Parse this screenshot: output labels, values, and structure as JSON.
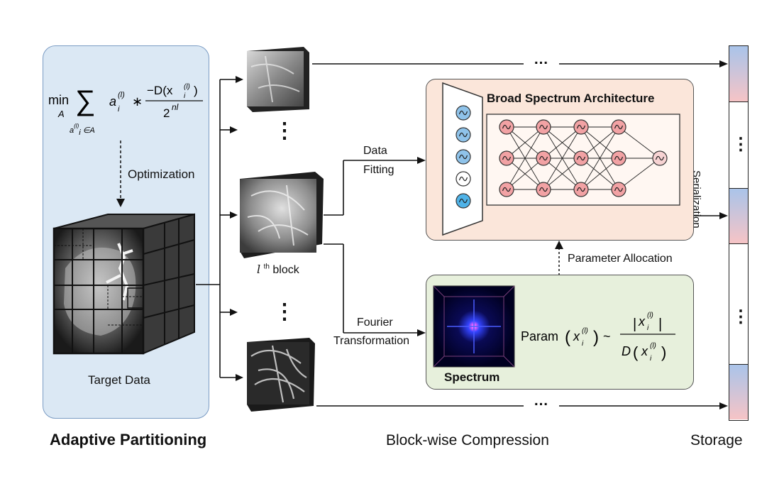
{
  "sections": {
    "left": "Adaptive Partitioning",
    "middle": "Block-wise Compression",
    "right": "Storage"
  },
  "left_panel": {
    "formula_min": "min",
    "formula_sub": "A",
    "formula_sum_term": "a",
    "formula_numerator": "−D(x",
    "formula_denominator": "2",
    "optimization_label": "Optimization",
    "target_label": "Target Data"
  },
  "blocks": {
    "lth_block_label": "l",
    "lth_block_suffix": "th",
    "lth_block_word": "block",
    "ellipsis": "⋮"
  },
  "arrows": {
    "data_fitting_line1": "Data",
    "data_fitting_line2": "Fitting",
    "fourier_line1": "Fourier",
    "fourier_line2": "Transformation",
    "serialization": "Serialization",
    "parameter_allocation": "Parameter Allocation",
    "top_ellipsis": "…",
    "bottom_ellipsis": "…"
  },
  "architecture": {
    "title": "Broad Spectrum Architecture",
    "input_node_colors": [
      "#8fc3ea",
      "#8fc3ea",
      "#8fc3ea",
      "#ffffff",
      "#4fb3e8"
    ],
    "hidden_node_color": "#f2a2a4",
    "output_node_color": "#f7d3d3"
  },
  "spectrum": {
    "label": "Spectrum",
    "formula_param": "Param",
    "formula_tilde": "~"
  },
  "storage": {
    "colors": {
      "top": "#a9c4ea",
      "bottom": "#f6c4c6"
    },
    "ellipsis": "⋮"
  }
}
